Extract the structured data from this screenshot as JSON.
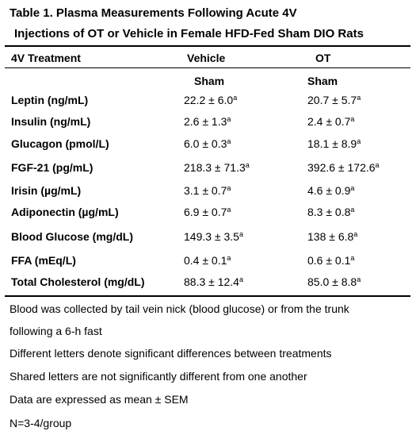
{
  "table": {
    "title_line1": "Table 1.   Plasma Measurements Following Acute 4V",
    "title_line2": "Injections of OT or Vehicle in Female HFD-Fed Sham DIO Rats",
    "headers": {
      "treatment": "4V Treatment",
      "vehicle": "Vehicle",
      "ot": "OT",
      "vehicle_sub": "Sham",
      "ot_sub": "Sham"
    },
    "rows": [
      {
        "label": "Leptin (ng/mL)",
        "vehicle": "22.2 ± 6.0",
        "vehicle_sup": "a",
        "ot": "20.7 ± 5.7",
        "ot_sup": "a"
      },
      {
        "label": "Insulin (ng/mL)",
        "vehicle": "2.6 ± 1.3",
        "vehicle_sup": "a",
        "ot": "2.4 ± 0.7",
        "ot_sup": "a"
      },
      {
        "label": "Glucagon (pmol/L)",
        "vehicle": "6.0 ± 0.3",
        "vehicle_sup": "a",
        "ot": "18.1 ± 8.9",
        "ot_sup": "a"
      },
      {
        "label": "FGF-21 (pg/mL)",
        "vehicle": "218.3 ± 71.3",
        "vehicle_sup": "a",
        "ot": "392.6 ± 172.6",
        "ot_sup": "a"
      },
      {
        "label": "Irisin (µg/mL)",
        "vehicle": "3.1 ± 0.7",
        "vehicle_sup": "a",
        "ot": "4.6 ± 0.9",
        "ot_sup": "a"
      },
      {
        "label": "Adiponectin (µg/mL)",
        "vehicle": "6.9 ± 0.7",
        "vehicle_sup": "a",
        "ot": "8.3 ± 0.8",
        "ot_sup": "a"
      },
      {
        "label": "Blood Glucose (mg/dL)",
        "vehicle": "149.3 ± 3.5",
        "vehicle_sup": "a",
        "ot": "138 ± 6.8",
        "ot_sup": "a"
      },
      {
        "label": "FFA (mEq/L)",
        "vehicle": "0.4 ± 0.1",
        "vehicle_sup": "a",
        "ot": "0.6 ± 0.1",
        "ot_sup": "a"
      },
      {
        "label": "Total Cholesterol (mg/dL)",
        "vehicle": "88.3 ± 12.4",
        "vehicle_sup": "a",
        "ot": "85.0 ± 8.8",
        "ot_sup": "a"
      }
    ],
    "footnotes": [
      "Blood was collected by tail vein nick (blood glucose) or from the trunk",
      "following a 6-h fast",
      "Different letters denote significant differences between treatments",
      "Shared letters are not significantly different from one another",
      "Data are expressed as mean ± SEM",
      "N=3-4/group"
    ]
  }
}
